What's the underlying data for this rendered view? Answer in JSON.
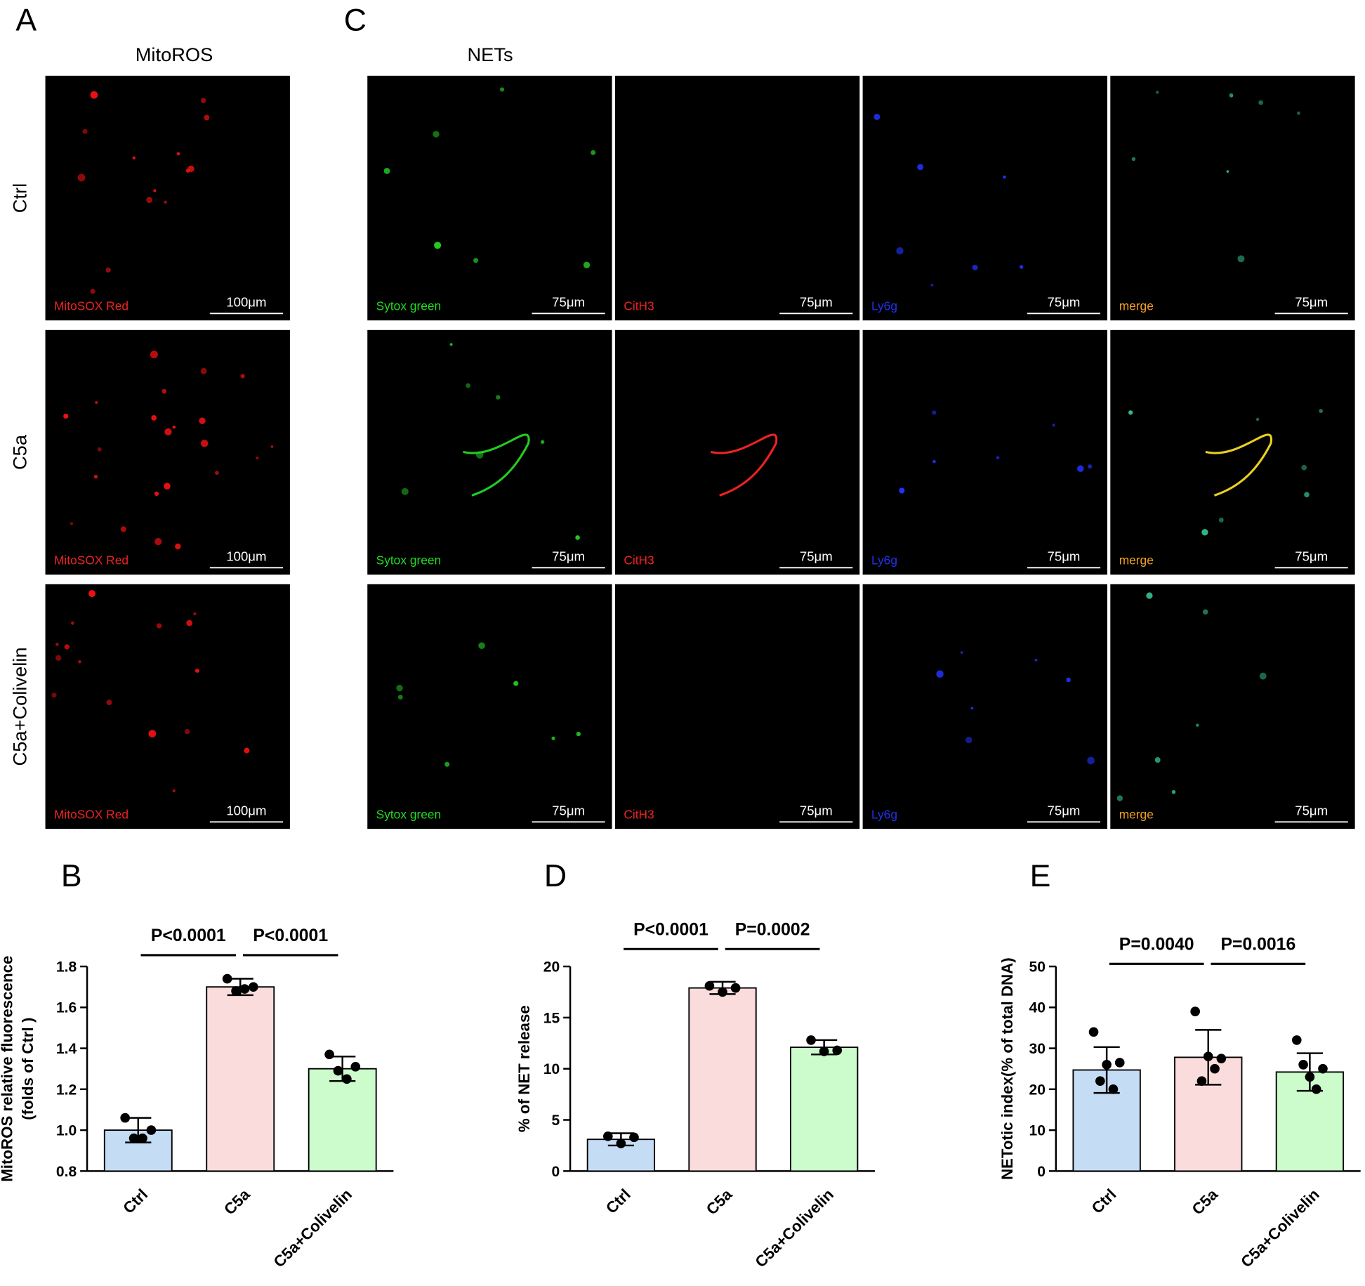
{
  "figure": {
    "panel_labels": [
      "A",
      "B",
      "C",
      "D",
      "E"
    ],
    "mitoros_title": "MitoROS",
    "nets_title": "NETs",
    "row_labels": [
      "Ctrl",
      "C5a",
      "C5a+Colivelin"
    ],
    "mitoros_stain": "MitoSOX Red",
    "mitoros_scale": "100μm",
    "nets_stains": [
      "Sytox green",
      "CitH3",
      "Ly6g",
      "merge"
    ],
    "nets_stain_colors": [
      "#22dd22",
      "#ee2222",
      "#2233ee",
      "#f0a020"
    ],
    "nets_scale": "75μm"
  },
  "chart_data": [
    {
      "type": "bar",
      "y_label": [
        "MitoROS relative fluorescence",
        "(folds of Ctrl )"
      ],
      "categories": [
        "Ctrl",
        "C5a",
        "C5a+Colivelin"
      ],
      "colors": [
        "#c5dcf5",
        "#fbdcdc",
        "#ccfccc"
      ],
      "values": [
        1.0,
        1.7,
        1.3
      ],
      "errors": [
        0.06,
        0.04,
        0.06
      ],
      "points": [
        [
          1.06,
          0.96,
          0.96,
          1.0
        ],
        [
          1.74,
          1.68,
          1.69,
          1.7
        ],
        [
          1.37,
          1.29,
          1.25,
          1.31
        ]
      ],
      "ylim": [
        0.8,
        1.8
      ],
      "yticks": [
        0.8,
        {
          "value": 1,
          "label": "1.0"
        },
        1.2,
        1.4,
        1.6,
        1.8
      ],
      "comparisons": [
        {
          "groups": [
            "Ctrl",
            "C5a"
          ],
          "label": "P<0.0001"
        },
        {
          "groups": [
            "C5a",
            "C5a+Colivelin"
          ],
          "label": "P<0.0001"
        }
      ]
    },
    {
      "type": "bar",
      "y_label": [
        "% of NET release"
      ],
      "categories": [
        "Ctrl",
        "C5a",
        "C5a+Colivelin"
      ],
      "colors": [
        "#c5dcf5",
        "#fbdcdc",
        "#ccfccc"
      ],
      "values": [
        3.1,
        17.9,
        12.1
      ],
      "errors": [
        0.6,
        0.6,
        0.7
      ],
      "points": [
        [
          3.4,
          2.7,
          3.3
        ],
        [
          18.1,
          17.5,
          17.9
        ],
        [
          12.8,
          11.7,
          11.8
        ]
      ],
      "ylim": [
        0,
        20
      ],
      "yticks": [
        0,
        5,
        10,
        15,
        20
      ],
      "comparisons": [
        {
          "groups": [
            "Ctrl",
            "C5a"
          ],
          "label": "P<0.0001"
        },
        {
          "groups": [
            "C5a",
            "C5a+Colivelin"
          ],
          "label": "P=0.0002"
        }
      ]
    },
    {
      "type": "bar",
      "y_label": [
        "NETotic index(% of total DNA)"
      ],
      "categories": [
        "Ctrl",
        "C5a",
        "C5a+Colivelin"
      ],
      "colors": [
        "#c5dcf5",
        "#fbdcdc",
        "#ccfccc"
      ],
      "values": [
        24.7,
        27.8,
        24.2
      ],
      "errors": [
        5.6,
        6.7,
        4.6
      ],
      "points": [
        [
          34,
          22,
          26,
          20,
          26.5
        ],
        [
          39,
          22,
          28,
          25,
          27.5
        ],
        [
          32,
          26,
          23,
          20,
          25
        ]
      ],
      "ylim": [
        0,
        50
      ],
      "yticks": [
        0,
        10,
        20,
        30,
        40,
        50
      ],
      "comparisons": [
        {
          "groups": [
            "Ctrl",
            "C5a"
          ],
          "label": "P=0.0040"
        },
        {
          "groups": [
            "C5a",
            "C5a+Colivelin"
          ],
          "label": "P=0.0016"
        }
      ]
    }
  ]
}
